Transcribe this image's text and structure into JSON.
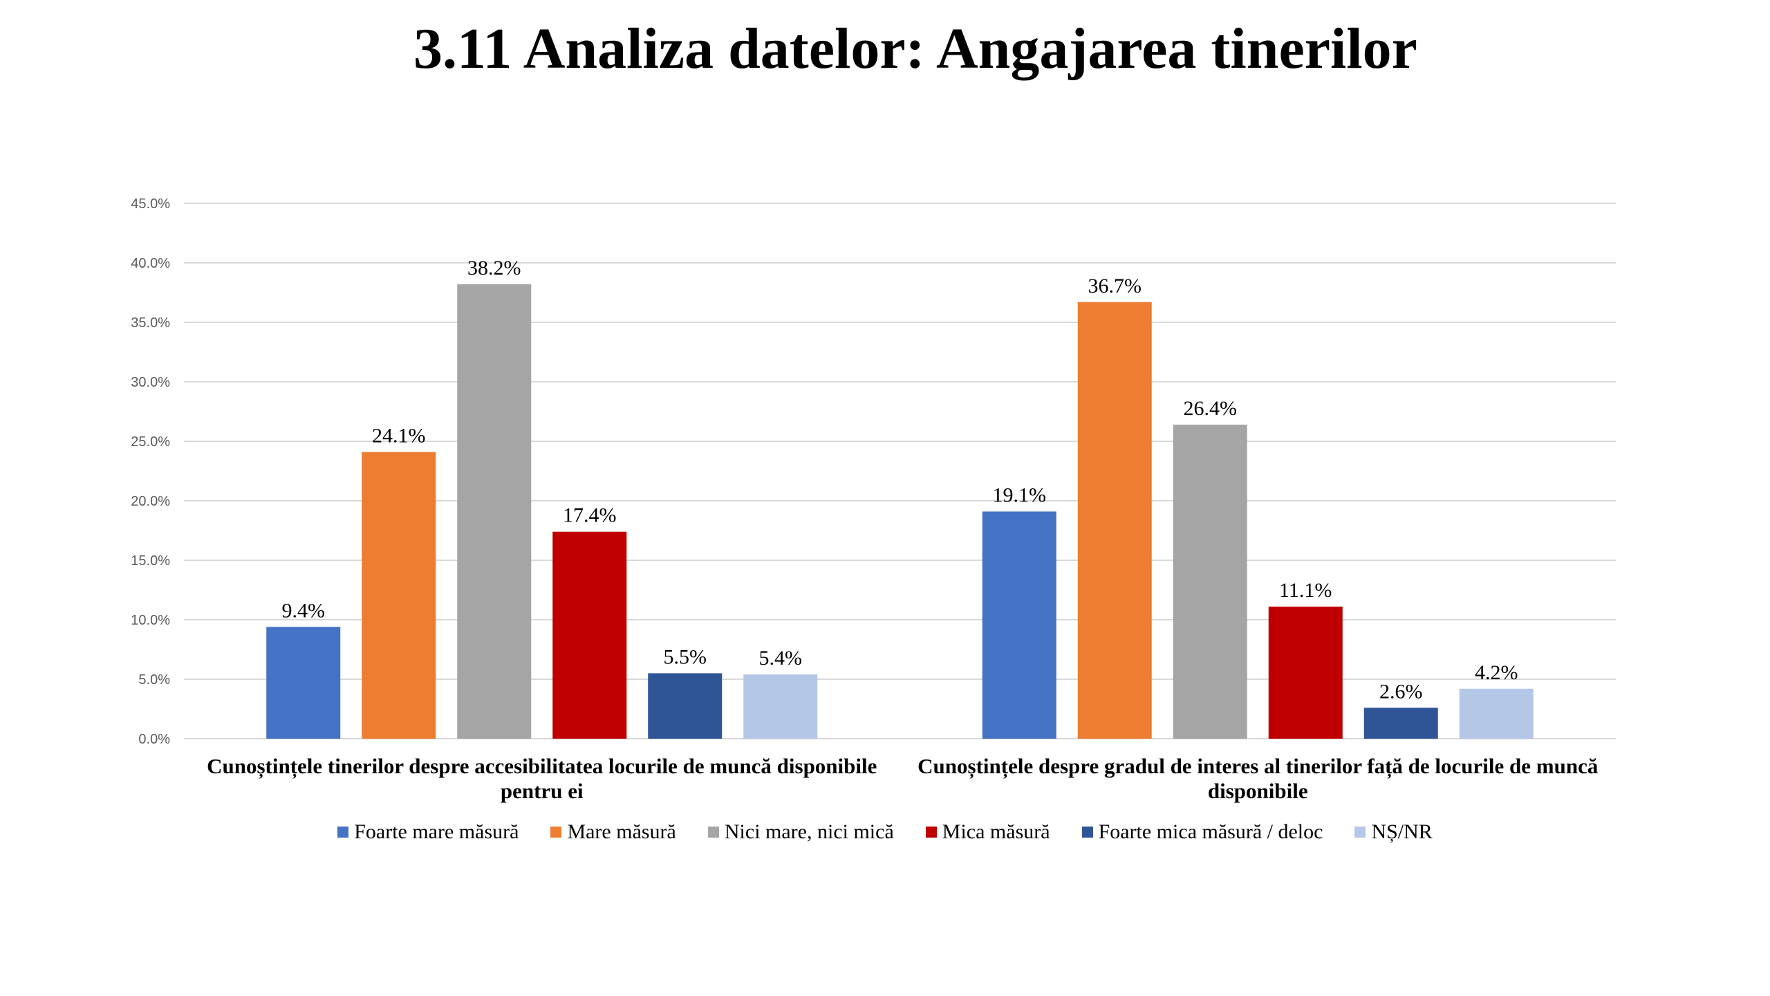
{
  "chart_data": {
    "type": "bar",
    "title": "3.11 Analiza datelor: Angajarea tinerilor",
    "categories": [
      [
        "Cunoștințele tinerilor despre accesibilitatea locurile de muncă disponibile",
        "pentru ei"
      ],
      [
        "Cunoștințele despre gradul de interes al tinerilor față de locurile de muncă",
        "disponibile"
      ]
    ],
    "series": [
      {
        "name": "Foarte mare măsură",
        "color": "#4472C4",
        "values": [
          9.4,
          19.1
        ]
      },
      {
        "name": "Mare măsură",
        "color": "#ED7D31",
        "values": [
          24.1,
          36.7
        ]
      },
      {
        "name": "Nici mare, nici mică",
        "color": "#A5A5A5",
        "values": [
          38.2,
          26.4
        ]
      },
      {
        "name": "Mica măsură",
        "color": "#C00000",
        "values": [
          17.4,
          11.1
        ]
      },
      {
        "name": "Foarte mica măsură / deloc",
        "color": "#2F5597",
        "values": [
          5.5,
          2.6
        ]
      },
      {
        "name": "NȘ/NR",
        "color": "#B4C7E7",
        "values": [
          5.4,
          4.2
        ]
      }
    ],
    "yticks": [
      "0.0%",
      "5.0%",
      "10.0%",
      "15.0%",
      "20.0%",
      "25.0%",
      "30.0%",
      "35.0%",
      "40.0%",
      "45.0%"
    ],
    "ylim": [
      0,
      45
    ],
    "xlabel": "",
    "ylabel": "",
    "grid": true,
    "legend": "bottom"
  }
}
